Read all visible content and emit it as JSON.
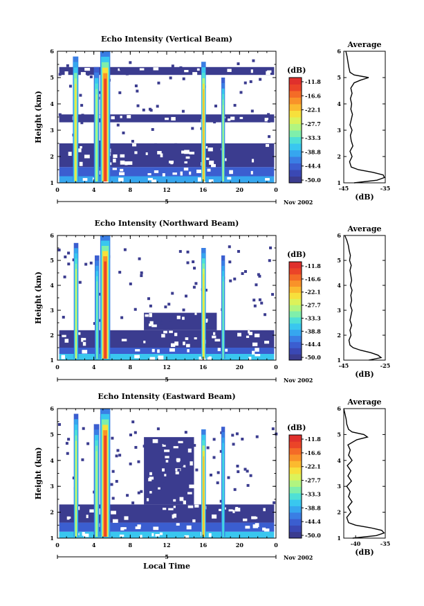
{
  "figure": {
    "x_axis_label": "Local Time",
    "date_label": "Nov 2002",
    "day_label": "5"
  },
  "colorbar": {
    "unit": "(dB)",
    "ticks": [
      "-11.8",
      "-16.6",
      "-22.1",
      "-27.7",
      "-33.3",
      "-38.8",
      "-44.4",
      "-50.0"
    ],
    "colors": [
      "#3b3c8f",
      "#3a48b4",
      "#3b5ed0",
      "#3a7ee4",
      "#36a6ef",
      "#39c7ef",
      "#4fe0d6",
      "#7fefab",
      "#b2f580",
      "#dcf25a",
      "#f7e03c",
      "#fbba2f",
      "#f99229",
      "#f46b27",
      "#eb4428",
      "#e0302c"
    ]
  },
  "chart_data": [
    {
      "type": "heatmap",
      "title": "Echo Intensity (Vertical Beam)",
      "xlabel": "",
      "ylabel": "Height (km)",
      "xlim": [
        0,
        24
      ],
      "ylim": [
        1,
        6
      ],
      "x_ticks": [
        "0",
        "4",
        "8",
        "12",
        "16",
        "20",
        "0"
      ],
      "y_ticks": [
        "1",
        "2",
        "3",
        "4",
        "5",
        "6"
      ],
      "z_unit": "dB",
      "zlim": [
        -50.0,
        -11.8
      ],
      "layers": [
        {
          "y_from": 1.0,
          "y_to": 1.25,
          "x_from": 0.2,
          "x_to": 23.8,
          "value": -40
        },
        {
          "y_from": 1.25,
          "y_to": 1.6,
          "x_from": 0.2,
          "x_to": 23.8,
          "value": -44
        },
        {
          "y_from": 1.6,
          "y_to": 2.5,
          "x_from": 0.2,
          "x_to": 23.8,
          "value": -48
        },
        {
          "y_from": 3.3,
          "y_to": 3.6,
          "x_from": 0.2,
          "x_to": 23.8,
          "value": -48
        },
        {
          "y_from": 5.1,
          "y_to": 5.4,
          "x_from": 0.2,
          "x_to": 23.8,
          "value": -49
        }
      ],
      "plumes": [
        {
          "x_from": 1.7,
          "x_to": 2.3,
          "y_top": 5.8,
          "value": -26
        },
        {
          "x_from": 4.0,
          "x_to": 4.6,
          "y_top": 5.4,
          "value": -30
        },
        {
          "x_from": 4.7,
          "x_to": 5.8,
          "y_top": 6.0,
          "value": -16
        },
        {
          "x_from": 15.8,
          "x_to": 16.3,
          "y_top": 5.6,
          "value": -22
        },
        {
          "x_from": 18.0,
          "x_to": 18.4,
          "y_top": 5.0,
          "value": -30
        }
      ],
      "average_profile": {
        "title": "Average",
        "xlabel": "(dB)",
        "x_ticks": [
          "-45",
          "-35"
        ],
        "xlim": [
          -45,
          -35
        ],
        "heights": [
          1.0,
          1.1,
          1.2,
          1.3,
          1.4,
          1.5,
          1.6,
          1.8,
          2.0,
          2.2,
          2.4,
          2.6,
          2.8,
          3.0,
          3.2,
          3.4,
          3.6,
          3.8,
          4.0,
          4.2,
          4.4,
          4.6,
          4.8,
          4.9,
          5.0,
          5.1,
          5.2,
          5.4,
          5.6,
          5.8,
          6.0
        ],
        "values": [
          -42.5,
          -37.0,
          -35.2,
          -35.5,
          -38.0,
          -41.5,
          -43.2,
          -43.6,
          -43.0,
          -43.5,
          -42.8,
          -43.2,
          -43.4,
          -43.0,
          -43.5,
          -43.2,
          -42.9,
          -43.3,
          -43.1,
          -43.4,
          -43.0,
          -43.3,
          -42.5,
          -41.0,
          -39.0,
          -42.5,
          -43.5,
          -43.8,
          -44.0,
          -44.2,
          -44.5
        ]
      }
    },
    {
      "type": "heatmap",
      "title": "Echo Intensity (Northward Beam)",
      "xlabel": "",
      "ylabel": "Height (km)",
      "xlim": [
        0,
        24
      ],
      "ylim": [
        1,
        6
      ],
      "x_ticks": [
        "0",
        "4",
        "8",
        "12",
        "16",
        "20",
        "0"
      ],
      "y_ticks": [
        "1",
        "2",
        "3",
        "4",
        "5",
        "6"
      ],
      "z_unit": "dB",
      "zlim": [
        -50.0,
        -11.8
      ],
      "layers": [
        {
          "y_from": 1.0,
          "y_to": 1.25,
          "x_from": 0.2,
          "x_to": 23.8,
          "value": -38
        },
        {
          "y_from": 1.25,
          "y_to": 1.5,
          "x_from": 0.2,
          "x_to": 23.8,
          "value": -44
        },
        {
          "y_from": 1.5,
          "y_to": 2.2,
          "x_from": 0.2,
          "x_to": 23.8,
          "value": -48
        },
        {
          "y_from": 2.2,
          "y_to": 2.9,
          "x_from": 9.5,
          "x_to": 17.5,
          "value": -49
        }
      ],
      "plumes": [
        {
          "x_from": 1.8,
          "x_to": 2.3,
          "y_top": 5.7,
          "value": -28
        },
        {
          "x_from": 4.1,
          "x_to": 4.6,
          "y_top": 5.2,
          "value": -32
        },
        {
          "x_from": 4.7,
          "x_to": 5.8,
          "y_top": 6.0,
          "value": -16
        },
        {
          "x_from": 15.8,
          "x_to": 16.3,
          "y_top": 5.5,
          "value": -24
        },
        {
          "x_from": 18.0,
          "x_to": 18.4,
          "y_top": 5.2,
          "value": -32
        }
      ],
      "average_profile": {
        "title": "Average",
        "xlabel": "(dB)",
        "x_ticks": [
          "-45",
          "-25"
        ],
        "xlim": [
          -45,
          -25
        ],
        "heights": [
          1.0,
          1.1,
          1.2,
          1.3,
          1.4,
          1.5,
          1.6,
          1.8,
          2.0,
          2.2,
          2.4,
          2.6,
          2.8,
          3.0,
          3.2,
          3.4,
          3.6,
          3.8,
          4.0,
          4.2,
          4.4,
          4.6,
          4.8,
          5.0,
          5.2,
          5.4,
          5.6,
          5.8,
          6.0
        ],
        "values": [
          -33.0,
          -27.0,
          -28.5,
          -32.0,
          -37.0,
          -40.5,
          -42.0,
          -42.5,
          -41.5,
          -42.0,
          -41.2,
          -42.0,
          -41.5,
          -41.0,
          -41.8,
          -41.2,
          -41.6,
          -41.0,
          -41.8,
          -41.2,
          -41.6,
          -42.0,
          -41.4,
          -42.2,
          -41.8,
          -42.4,
          -42.8,
          -43.5,
          -44.5
        ]
      }
    },
    {
      "type": "heatmap",
      "title": "Echo Intensity (Eastward Beam)",
      "xlabel": "Local Time",
      "ylabel": "Height (km)",
      "xlim": [
        0,
        24
      ],
      "ylim": [
        1,
        6
      ],
      "x_ticks": [
        "0",
        "4",
        "8",
        "12",
        "16",
        "20",
        "0"
      ],
      "y_ticks": [
        "1",
        "2",
        "3",
        "4",
        "5",
        "6"
      ],
      "z_unit": "dB",
      "zlim": [
        -50.0,
        -11.8
      ],
      "layers": [
        {
          "y_from": 1.0,
          "y_to": 1.25,
          "x_from": 0.2,
          "x_to": 23.8,
          "value": -38
        },
        {
          "y_from": 1.25,
          "y_to": 1.6,
          "x_from": 0.2,
          "x_to": 23.8,
          "value": -44
        },
        {
          "y_from": 1.6,
          "y_to": 2.3,
          "x_from": 0.2,
          "x_to": 23.8,
          "value": -48
        },
        {
          "y_from": 2.3,
          "y_to": 4.9,
          "x_from": 9.5,
          "x_to": 15.0,
          "value": -49
        }
      ],
      "plumes": [
        {
          "x_from": 1.8,
          "x_to": 2.3,
          "y_top": 5.8,
          "value": -28
        },
        {
          "x_from": 4.0,
          "x_to": 4.6,
          "y_top": 5.4,
          "value": -30
        },
        {
          "x_from": 4.7,
          "x_to": 5.8,
          "y_top": 6.0,
          "value": -16
        },
        {
          "x_from": 15.8,
          "x_to": 16.3,
          "y_top": 5.2,
          "value": -22
        },
        {
          "x_from": 18.0,
          "x_to": 18.4,
          "y_top": 5.3,
          "value": -34
        }
      ],
      "average_profile": {
        "title": "Average",
        "xlabel": "(dB)",
        "x_ticks": [
          "-40",
          "-35"
        ],
        "xlim": [
          -42,
          -35
        ],
        "heights": [
          1.0,
          1.1,
          1.2,
          1.3,
          1.4,
          1.5,
          1.6,
          1.8,
          2.0,
          2.2,
          2.4,
          2.6,
          2.8,
          3.0,
          3.2,
          3.4,
          3.6,
          3.8,
          4.0,
          4.2,
          4.4,
          4.6,
          4.8,
          4.9,
          5.0,
          5.1,
          5.2,
          5.4,
          5.6,
          5.8,
          6.0
        ],
        "values": [
          -40.5,
          -36.5,
          -35.2,
          -35.6,
          -37.5,
          -40.0,
          -41.2,
          -41.5,
          -40.8,
          -41.3,
          -40.6,
          -41.2,
          -40.9,
          -41.5,
          -40.7,
          -41.3,
          -40.8,
          -41.4,
          -40.6,
          -41.2,
          -40.9,
          -41.3,
          -39.8,
          -38.0,
          -38.6,
          -40.6,
          -41.2,
          -41.5,
          -41.6,
          -41.8,
          -42.0
        ]
      }
    }
  ]
}
